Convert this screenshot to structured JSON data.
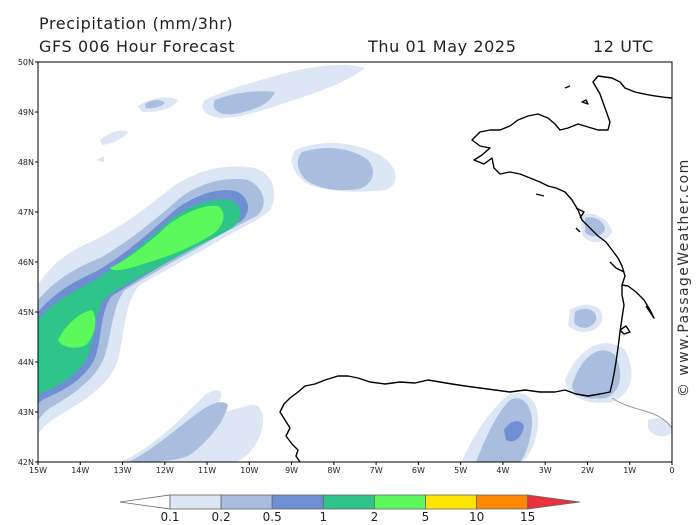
{
  "header": {
    "title": "Precipitation (mm/3hr)",
    "subtitle": "GFS 006 Hour Forecast",
    "datetime": "Thu 01 May 2025",
    "run_time": "12 UTC"
  },
  "credit": "© www.PassageWeather.com",
  "map": {
    "lat_labels": [
      "50N",
      "49N",
      "48N",
      "47N",
      "46N",
      "45N",
      "44N",
      "43N",
      "42N"
    ],
    "lon_labels": [
      "15W",
      "14W",
      "13W",
      "12W",
      "11W",
      "10W",
      "9W",
      "8W",
      "7W",
      "6W",
      "5W",
      "4W",
      "3W",
      "2W",
      "1W",
      "0"
    ],
    "lat_range": [
      42,
      50
    ],
    "lon_range": [
      -15,
      0
    ]
  },
  "legend": {
    "labels": [
      "0.1",
      "0.2",
      "0.5",
      "1",
      "2",
      "5",
      "10",
      "15"
    ],
    "colors": [
      "#ffffff",
      "#dce6f4",
      "#a9bedf",
      "#6f8fd3",
      "#2ec48a",
      "#5bf95b",
      "#ffe600",
      "#ff8800",
      "#e8323c"
    ]
  },
  "colors": {
    "coastline": "#000000",
    "border": "#999999",
    "precip_0_1": "#dce6f4",
    "precip_0_2": "#a9bedf",
    "precip_0_5": "#6f8fd3",
    "precip_1": "#2ec48a",
    "precip_2": "#5bf95b"
  }
}
